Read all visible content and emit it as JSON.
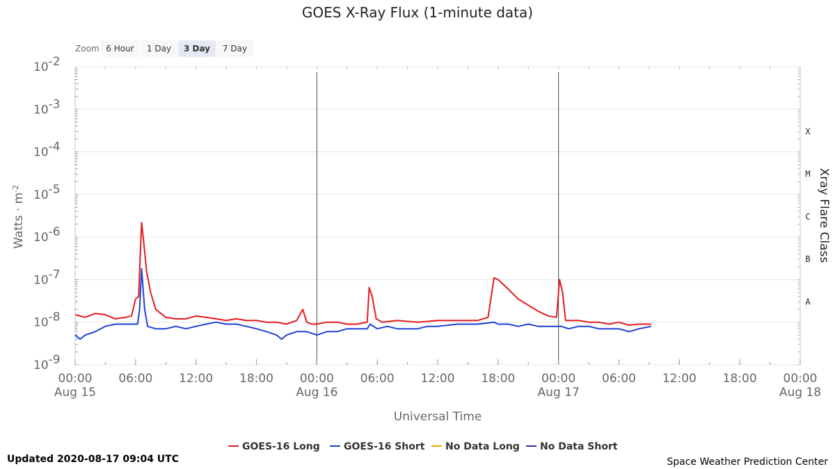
{
  "chart_data": {
    "type": "line",
    "title": "GOES X-Ray Flux (1-minute data)",
    "xlabel": "Universal Time",
    "ylabel": "Watts · m",
    "ylabel_sup": "-2",
    "y2label": "Xray Flare Class",
    "yscale": "log",
    "ylim": [
      "1e-9",
      "1e-2"
    ],
    "xlim": [
      "2020-08-15 00:00",
      "2020-08-18 00:00"
    ],
    "grid": true,
    "legend_position": "bottom-center",
    "y_ticks": [
      {
        "base": "10",
        "exp": "-2",
        "value": 0.01
      },
      {
        "base": "10",
        "exp": "-3",
        "value": 0.001
      },
      {
        "base": "10",
        "exp": "-4",
        "value": 0.0001
      },
      {
        "base": "10",
        "exp": "-5",
        "value": 1e-05
      },
      {
        "base": "10",
        "exp": "-6",
        "value": 1e-06
      },
      {
        "base": "10",
        "exp": "-7",
        "value": 1e-07
      },
      {
        "base": "10",
        "exp": "-8",
        "value": 1e-08
      },
      {
        "base": "10",
        "exp": "-9",
        "value": 1e-09
      }
    ],
    "flare_classes": [
      {
        "label": "X",
        "value": 0.0003
      },
      {
        "label": "M",
        "value": 3e-05
      },
      {
        "label": "C",
        "value": 3e-06
      },
      {
        "label": "B",
        "value": 3e-07
      },
      {
        "label": "A",
        "value": 3e-08
      }
    ],
    "x_ticks": [
      {
        "time": "00:00",
        "date": "Aug 15",
        "hours": 0
      },
      {
        "time": "06:00",
        "date": "",
        "hours": 6
      },
      {
        "time": "12:00",
        "date": "",
        "hours": 12
      },
      {
        "time": "18:00",
        "date": "",
        "hours": 18
      },
      {
        "time": "00:00",
        "date": "Aug 16",
        "hours": 24
      },
      {
        "time": "06:00",
        "date": "",
        "hours": 30
      },
      {
        "time": "12:00",
        "date": "",
        "hours": 36
      },
      {
        "time": "18:00",
        "date": "",
        "hours": 42
      },
      {
        "time": "00:00",
        "date": "Aug 17",
        "hours": 48
      },
      {
        "time": "06:00",
        "date": "",
        "hours": 54
      },
      {
        "time": "12:00",
        "date": "",
        "hours": 60
      },
      {
        "time": "18:00",
        "date": "",
        "hours": 66
      },
      {
        "time": "00:00",
        "date": "Aug 18",
        "hours": 72
      }
    ],
    "day_boundaries": [
      24,
      48
    ],
    "series": [
      {
        "name": "GOES-16 Long",
        "color": "#e41a1c",
        "hours": [
          0,
          1,
          2,
          3,
          4,
          5,
          5.6,
          6,
          6.3,
          6.6,
          6.8,
          7.1,
          7.5,
          8,
          9,
          10,
          11,
          12,
          13,
          14,
          15,
          16,
          17,
          18,
          19,
          20,
          21,
          22,
          22.6,
          23,
          23.5,
          24,
          25,
          26,
          27,
          28,
          29,
          29.2,
          29.5,
          29.9,
          30.5,
          32,
          34,
          36,
          38,
          40,
          41,
          41.6,
          42,
          43,
          44,
          45,
          46,
          47,
          47.8,
          48.1,
          48.4,
          48.7,
          49.2,
          50,
          51,
          52,
          53,
          54,
          55,
          56,
          57.2
        ],
        "values": [
          1.5e-08,
          1.3e-08,
          1.6e-08,
          1.5e-08,
          1.2e-08,
          1.3e-08,
          1.4e-08,
          3.5e-08,
          4e-08,
          2.2e-06,
          8e-07,
          1.5e-07,
          5e-08,
          2e-08,
          1.3e-08,
          1.2e-08,
          1.2e-08,
          1.4e-08,
          1.3e-08,
          1.2e-08,
          1.1e-08,
          1.2e-08,
          1.1e-08,
          1.1e-08,
          1e-08,
          1e-08,
          9e-09,
          1.1e-08,
          2e-08,
          1e-08,
          9e-09,
          9e-09,
          1e-08,
          1e-08,
          9e-09,
          9e-09,
          1e-08,
          6.5e-08,
          4e-08,
          1.2e-08,
          1e-08,
          1.1e-08,
          1e-08,
          1.1e-08,
          1.1e-08,
          1.1e-08,
          1.3e-08,
          1.1e-07,
          1e-07,
          6e-08,
          3.5e-08,
          2.5e-08,
          1.8e-08,
          1.4e-08,
          1.3e-08,
          1e-07,
          5e-08,
          1.1e-08,
          1.1e-08,
          1.1e-08,
          1e-08,
          1e-08,
          9e-09,
          1e-08,
          8.5e-09,
          9e-09,
          9e-09
        ]
      },
      {
        "name": "GOES-16 Short",
        "color": "#1f3fd6",
        "hours": [
          0,
          0.5,
          1,
          2,
          3,
          4,
          5,
          5.8,
          6.2,
          6.4,
          6.6,
          6.9,
          7.2,
          8,
          9,
          10,
          11,
          12,
          13,
          14,
          15,
          16,
          17,
          18,
          19,
          20,
          20.5,
          21,
          22,
          23,
          24,
          25,
          26,
          27,
          28,
          29,
          29.3,
          30,
          31,
          32,
          33,
          34,
          35,
          36,
          38,
          40,
          41.6,
          42,
          43,
          44,
          45,
          46,
          47,
          48,
          48.3,
          49,
          50,
          51,
          52,
          53,
          54,
          55,
          56,
          57.2
        ],
        "values": [
          5e-09,
          4e-09,
          5e-09,
          6e-09,
          8e-09,
          9e-09,
          9e-09,
          9e-09,
          9e-09,
          2e-08,
          1.8e-07,
          2e-08,
          8e-09,
          7e-09,
          7e-09,
          8e-09,
          7e-09,
          8e-09,
          9e-09,
          1e-08,
          9e-09,
          9e-09,
          8e-09,
          7e-09,
          6e-09,
          5e-09,
          4e-09,
          5e-09,
          6e-09,
          6e-09,
          5e-09,
          6e-09,
          6e-09,
          7e-09,
          7e-09,
          7e-09,
          9e-09,
          7e-09,
          8e-09,
          7e-09,
          7e-09,
          7e-09,
          8e-09,
          8e-09,
          9e-09,
          9e-09,
          1e-08,
          9e-09,
          9e-09,
          8e-09,
          9e-09,
          8e-09,
          8e-09,
          8e-09,
          8e-09,
          7e-09,
          8e-09,
          8e-09,
          7e-09,
          7e-09,
          7e-09,
          6e-09,
          7e-09,
          8e-09
        ]
      },
      {
        "name": "No Data Long",
        "color": "#ff9f00",
        "hours": [],
        "values": []
      },
      {
        "name": "No Data Short",
        "color": "#4b1da8",
        "hours": [],
        "values": []
      }
    ]
  },
  "zoom": {
    "label": "Zoom",
    "buttons": [
      "6 Hour",
      "1 Day",
      "3 Day",
      "7 Day"
    ],
    "selected_index": 2
  },
  "footer": {
    "updated": "Updated 2020-08-17 09:04 UTC",
    "credit": "Space Weather Prediction Center"
  }
}
